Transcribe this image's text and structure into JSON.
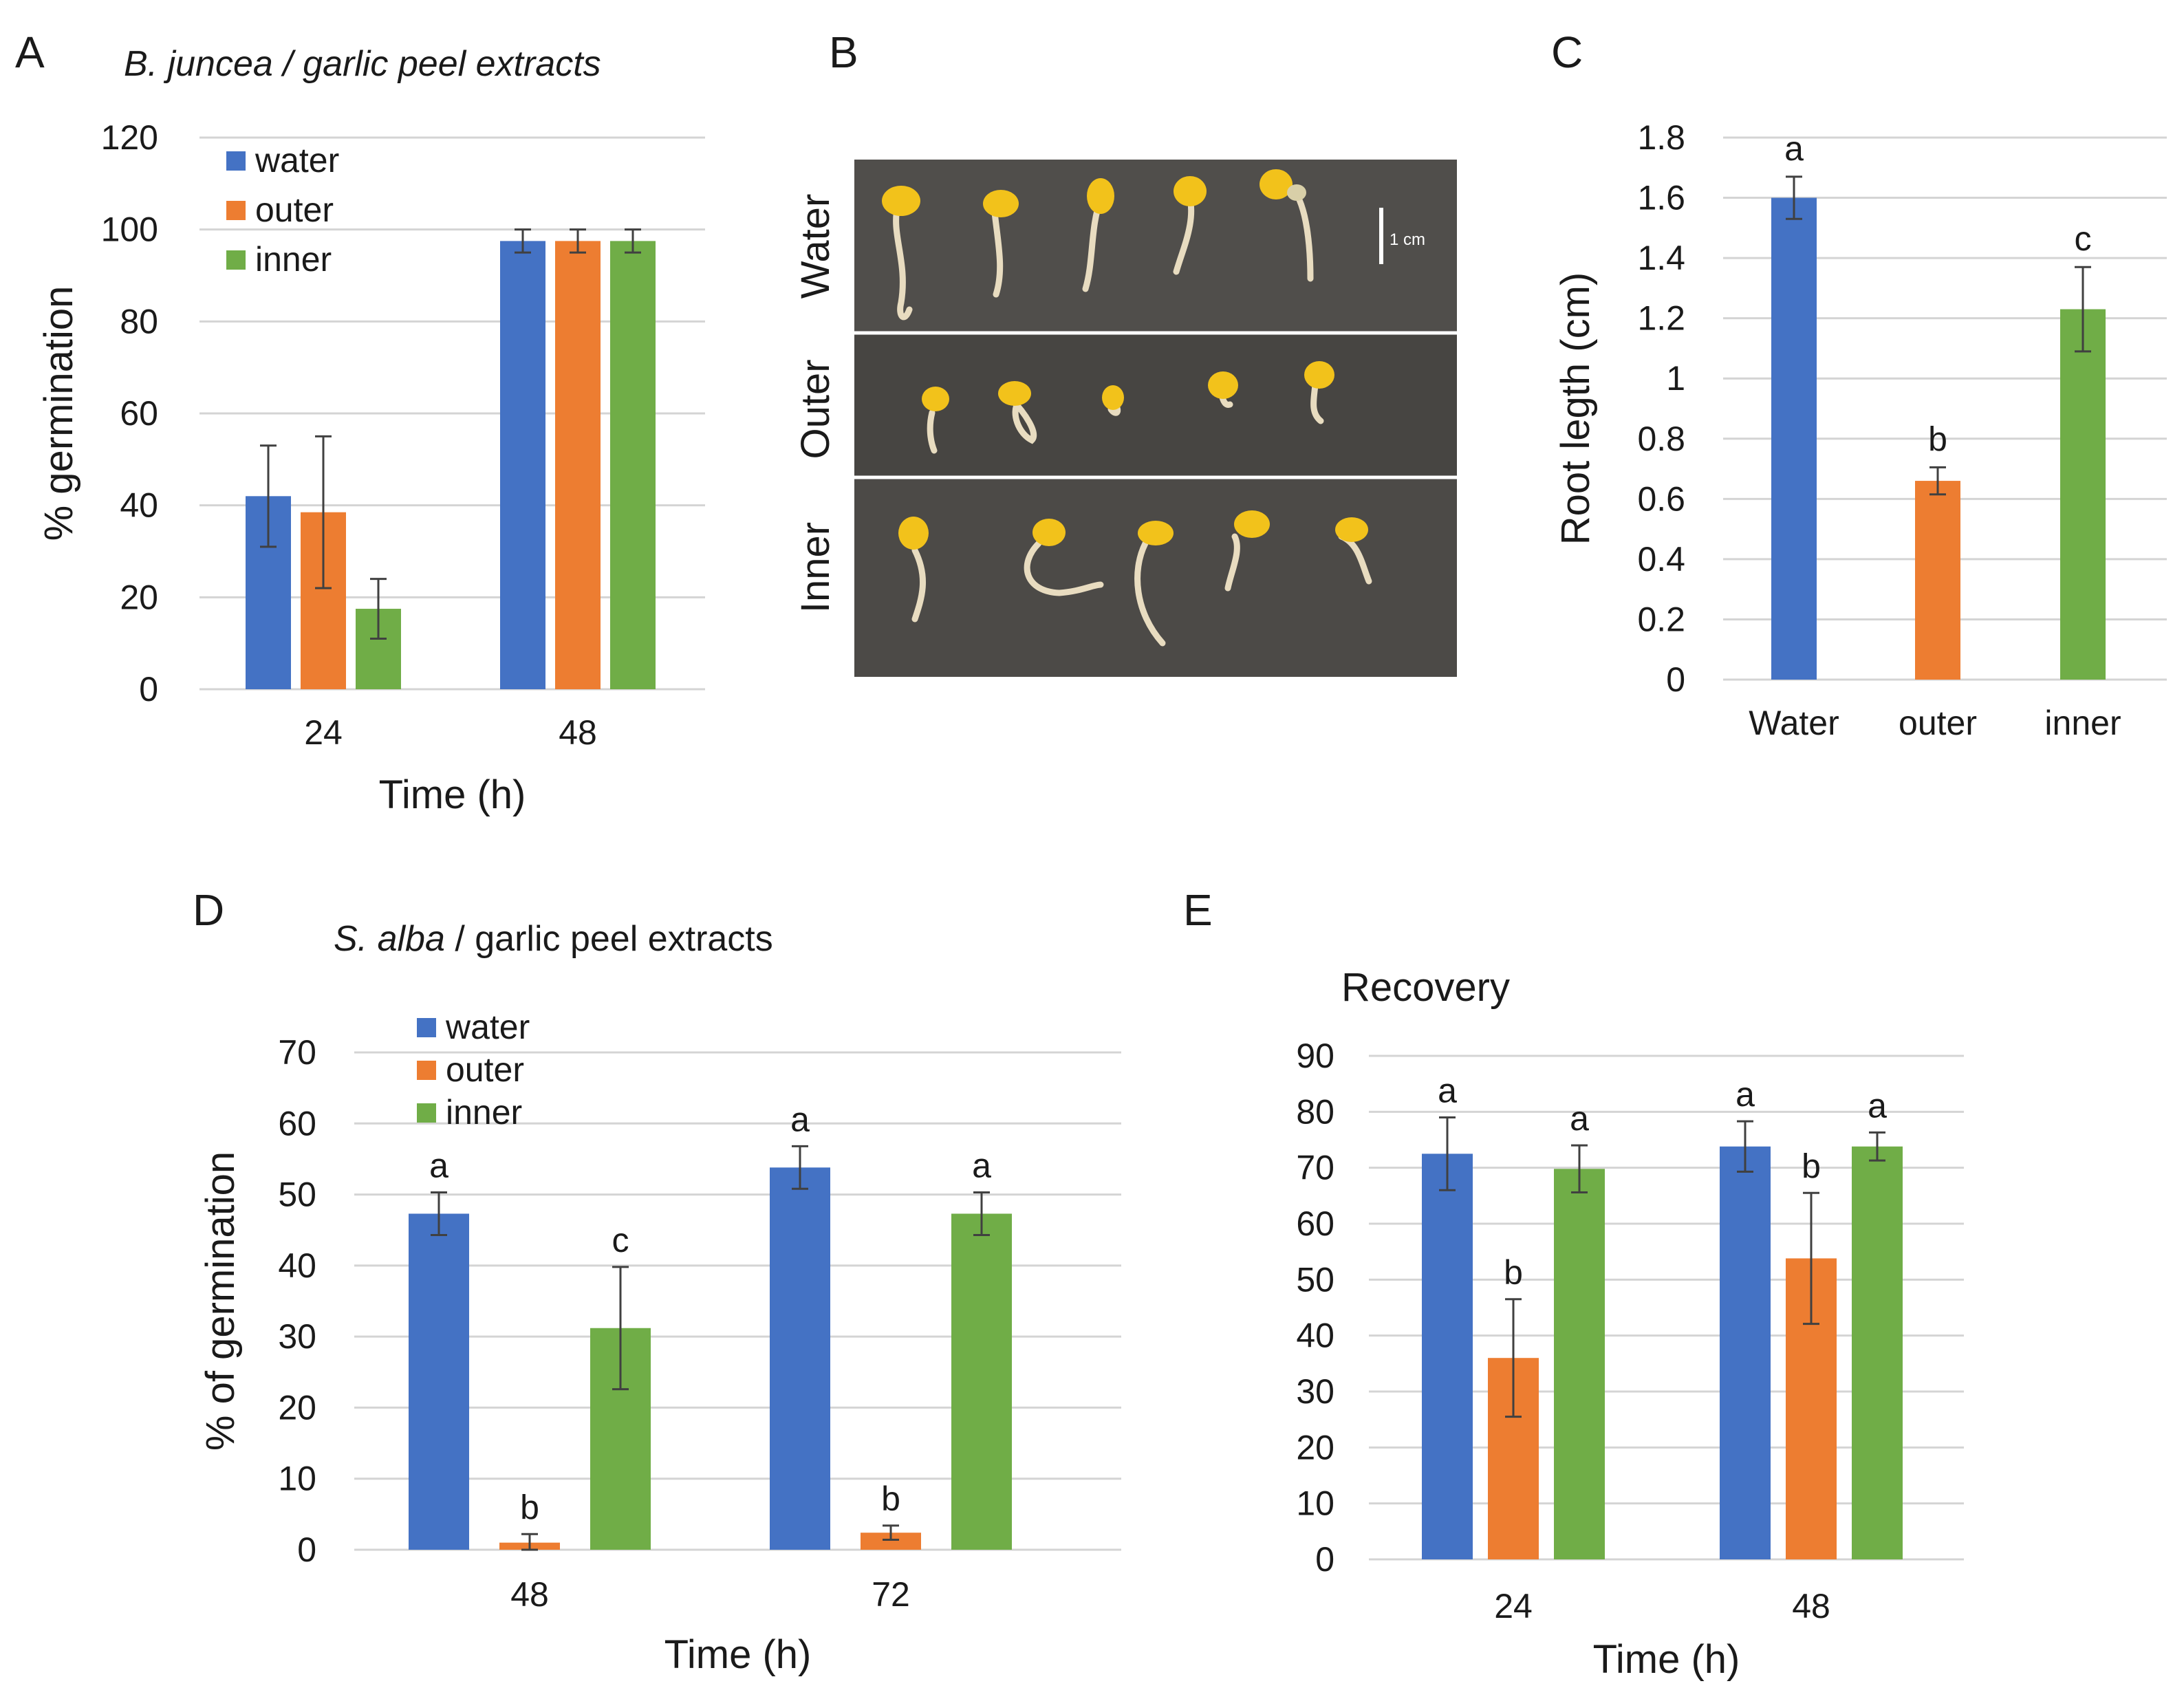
{
  "figure": {
    "panel_letters": [
      "A",
      "B",
      "C",
      "D",
      "E"
    ]
  },
  "colors": {
    "water": "#4472c4",
    "outer": "#ed7d31",
    "inner": "#70ad47"
  },
  "chart_data": [
    {
      "panel": "A",
      "type": "bar",
      "title_italic": "B. juncea / garlic peel extracts",
      "title_rest": "",
      "xlabel": "Time (h)",
      "ylabel": "% germination",
      "ylim": [
        0,
        120
      ],
      "yticks": [
        0,
        20,
        40,
        60,
        80,
        100,
        120
      ],
      "grid": true,
      "legend": "top-left",
      "categories": [
        "24",
        "48"
      ],
      "series": [
        {
          "name": "water",
          "key": "water",
          "values": [
            42,
            97.5
          ],
          "errors": [
            11,
            2.5
          ]
        },
        {
          "name": "outer",
          "key": "outer",
          "values": [
            38.5,
            97.5
          ],
          "errors": [
            16.5,
            2.5
          ]
        },
        {
          "name": "inner",
          "key": "inner",
          "values": [
            17.5,
            97.5
          ],
          "errors": [
            6.5,
            2.5
          ]
        }
      ],
      "labels": null
    },
    {
      "panel": "C",
      "type": "bar",
      "title_italic": "",
      "title_rest": "",
      "xlabel": "",
      "ylabel": "Root legth (cm)",
      "ylim": [
        0,
        1.8
      ],
      "yticks": [
        0,
        0.2,
        0.4,
        0.6,
        0.8,
        1,
        1.2,
        1.4,
        1.6,
        1.8
      ],
      "grid": true,
      "legend": "none",
      "categories": [
        "Water",
        "outer",
        "inner"
      ],
      "values": [
        1.6,
        0.66,
        1.23
      ],
      "errors": [
        0.07,
        0.045,
        0.14
      ],
      "colors_keys": [
        "water",
        "outer",
        "inner"
      ],
      "labels": [
        "a",
        "b",
        "c"
      ]
    },
    {
      "panel": "D",
      "type": "bar",
      "title_italic": "S. alba",
      "title_rest": " / garlic peel extracts",
      "xlabel": "Time (h)",
      "ylabel": "% of germination",
      "ylim": [
        0,
        70
      ],
      "yticks": [
        0,
        10,
        20,
        30,
        40,
        50,
        60,
        70
      ],
      "grid": true,
      "legend": "top-left",
      "categories": [
        "48",
        "72"
      ],
      "series": [
        {
          "name": "water",
          "key": "water",
          "values": [
            47.3,
            53.8
          ],
          "errors": [
            3,
            3
          ],
          "labels": [
            "a",
            "a"
          ]
        },
        {
          "name": "outer",
          "key": "outer",
          "values": [
            1,
            2.4
          ],
          "errors": [
            1.2,
            1
          ],
          "labels": [
            "b",
            "b"
          ]
        },
        {
          "name": "inner",
          "key": "inner",
          "values": [
            31.2,
            47.3
          ],
          "errors": [
            8.6,
            3
          ],
          "labels": [
            "c",
            "a"
          ]
        }
      ]
    },
    {
      "panel": "E",
      "type": "bar",
      "title_italic": "",
      "title_rest": "Recovery",
      "xlabel": "Time (h)",
      "ylabel": "",
      "ylim": [
        0,
        90
      ],
      "yticks": [
        0,
        10,
        20,
        30,
        40,
        50,
        60,
        70,
        80,
        90
      ],
      "grid": true,
      "legend": "none",
      "categories": [
        "24",
        "48"
      ],
      "series": [
        {
          "name": "water",
          "key": "water",
          "values": [
            72.5,
            73.8
          ],
          "errors": [
            6.5,
            4.5
          ],
          "labels": [
            "a",
            "a"
          ]
        },
        {
          "name": "outer",
          "key": "outer",
          "values": [
            36,
            53.8
          ],
          "errors": [
            10.5,
            11.7
          ],
          "labels": [
            "b",
            "b"
          ]
        },
        {
          "name": "inner",
          "key": "inner",
          "values": [
            69.8,
            73.8
          ],
          "errors": [
            4.2,
            2.5
          ],
          "labels": [
            "a",
            "a"
          ]
        }
      ]
    }
  ],
  "photo_panel": {
    "panel": "B",
    "row_labels": [
      "Water",
      "Outer",
      "Inner"
    ],
    "scale_bar_label": "1 cm"
  }
}
